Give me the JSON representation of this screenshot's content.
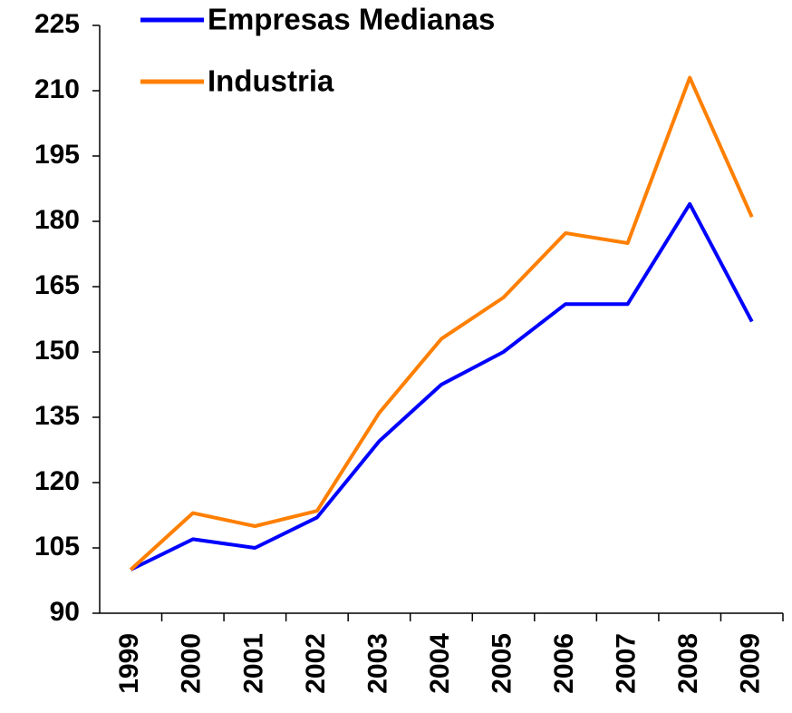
{
  "chart_data": {
    "type": "line",
    "categories": [
      "1999",
      "2000",
      "2001",
      "2002",
      "2003",
      "2004",
      "2005",
      "2006",
      "2007",
      "2008",
      "2009"
    ],
    "series": [
      {
        "name": "Empresas Medianas",
        "color": "#0000ff",
        "values": [
          100,
          107,
          105,
          112,
          129.5,
          142.5,
          150,
          161,
          161,
          184,
          157
        ]
      },
      {
        "name": "Industria",
        "color": "#ff7f00",
        "values": [
          100,
          113,
          110,
          113.5,
          136,
          153,
          162.5,
          177.3,
          175,
          213,
          181
        ]
      }
    ],
    "ylim": [
      90,
      225
    ],
    "yticks": [
      90,
      105,
      120,
      135,
      150,
      165,
      180,
      195,
      210,
      225
    ],
    "grid": false,
    "legend": "upper left"
  }
}
